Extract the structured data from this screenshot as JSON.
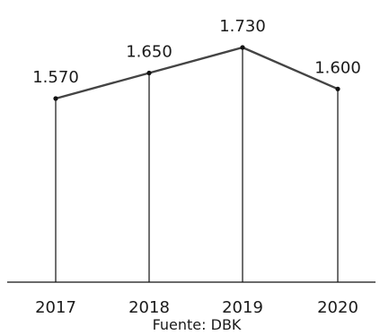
{
  "chart_data": {
    "type": "line",
    "categories": [
      "2017",
      "2018",
      "2019",
      "2020"
    ],
    "series": [
      {
        "values": [
          1570,
          1650,
          1730,
          1600
        ],
        "value_labels": [
          "1.570",
          "1.650",
          "1.730",
          "1.600"
        ]
      }
    ],
    "drop_lines": true,
    "source": "Fuente: DBK",
    "grid": false,
    "legend": "none",
    "colors": {
      "line": "#444444",
      "axis": "#111111",
      "text": "#1a1a1a"
    }
  }
}
